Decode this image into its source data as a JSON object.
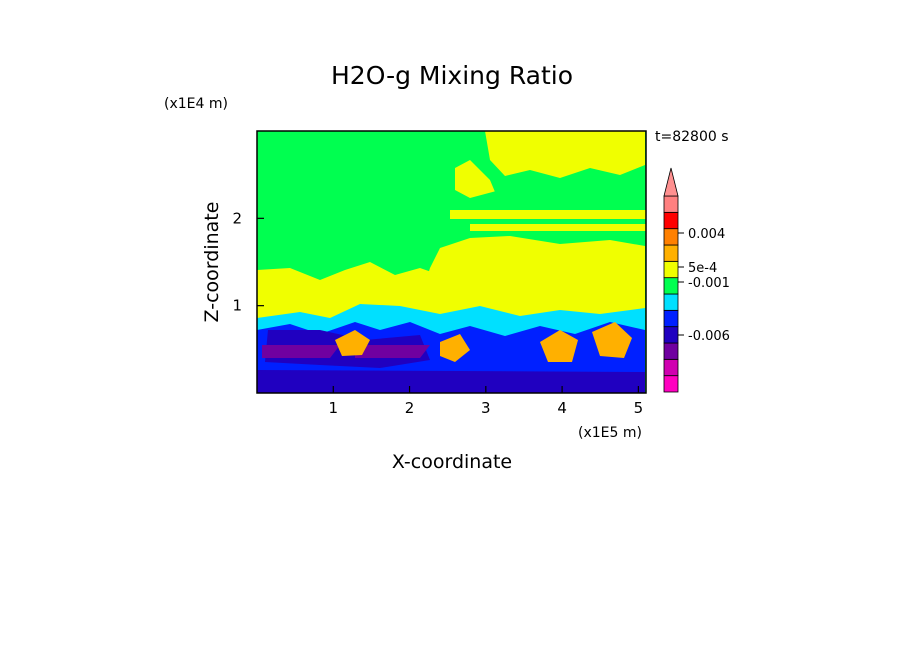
{
  "chart_data": {
    "type": "heatmap",
    "title": "H2O-g Mixing Ratio",
    "xlabel": "X-coordinate",
    "ylabel": "Z-coordinate",
    "x_unit": "(x1E5 m)",
    "y_unit": "(x1E4 m)",
    "time_label": "t=82800 s",
    "xlim": [
      0,
      5.1
    ],
    "ylim": [
      0,
      3.0
    ],
    "x_ticks": [
      "1",
      "2",
      "3",
      "4",
      "5"
    ],
    "x_tick_values": [
      1,
      2,
      3,
      4,
      5
    ],
    "y_ticks": [
      "1",
      "2"
    ],
    "y_tick_values": [
      1,
      2
    ],
    "colorbar": {
      "colors": [
        "#ff00c0",
        "#d000b0",
        "#7000a0",
        "#2000c0",
        "#0020ff",
        "#00e0ff",
        "#00ff50",
        "#f0ff00",
        "#ffb000",
        "#ff8000",
        "#ff0000",
        "#ff8080"
      ],
      "labels": [
        "-0.006",
        "-0.001",
        "5e-4",
        "0.004"
      ],
      "arrow_color": "#ff9090"
    },
    "field_layers": [
      {
        "region": "upper",
        "color": "#00ff50"
      },
      {
        "region": "moist-bands",
        "color": "#f0ff00"
      },
      {
        "region": "boundary",
        "color": "#00e0ff"
      },
      {
        "region": "lower",
        "color": "#0020ff"
      },
      {
        "region": "cells",
        "color": "#ffb000"
      },
      {
        "region": "dry-core",
        "color": "#7000a0"
      }
    ]
  }
}
